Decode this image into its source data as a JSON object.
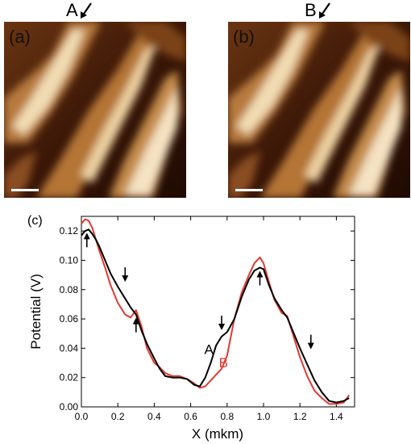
{
  "figure": {
    "panel_a": {
      "label": "(a)",
      "marker": "A"
    },
    "panel_b": {
      "label": "(b)",
      "marker": "B"
    },
    "panel_c": {
      "label": "(c)"
    }
  },
  "icons": {
    "marker_arrow": "down-left-arrow-icon",
    "profile_arrow": "vertical-arrow-icon"
  },
  "colors": {
    "series_a": "#000000",
    "series_b": "#e03a2f"
  },
  "chart_data": {
    "type": "line",
    "xlabel": "X (mkm)",
    "ylabel": "Potential (V)",
    "xlim": [
      0.0,
      1.5
    ],
    "ylim": [
      0.0,
      0.13
    ],
    "xticks": [
      "0.0",
      "0.2",
      "0.4",
      "0.6",
      "0.8",
      "1.0",
      "1.2",
      "1.4"
    ],
    "yticks": [
      "0.00",
      "0.02",
      "0.04",
      "0.06",
      "0.08",
      "0.10",
      "0.12"
    ],
    "series": [
      {
        "name": "A",
        "color": "#000000",
        "x": [
          0.0,
          0.02,
          0.04,
          0.06,
          0.08,
          0.1,
          0.13,
          0.16,
          0.2,
          0.24,
          0.27,
          0.3,
          0.33,
          0.36,
          0.4,
          0.43,
          0.46,
          0.5,
          0.54,
          0.58,
          0.62,
          0.65,
          0.68,
          0.71,
          0.74,
          0.77,
          0.8,
          0.84,
          0.88,
          0.92,
          0.95,
          0.98,
          1.0,
          1.03,
          1.06,
          1.1,
          1.13,
          1.16,
          1.2,
          1.24,
          1.28,
          1.32,
          1.36,
          1.4,
          1.44,
          1.47
        ],
        "y": [
          0.117,
          0.12,
          0.121,
          0.118,
          0.114,
          0.109,
          0.1,
          0.091,
          0.082,
          0.074,
          0.068,
          0.063,
          0.052,
          0.043,
          0.033,
          0.026,
          0.021,
          0.02,
          0.02,
          0.019,
          0.015,
          0.014,
          0.02,
          0.03,
          0.042,
          0.048,
          0.051,
          0.06,
          0.075,
          0.087,
          0.093,
          0.095,
          0.094,
          0.083,
          0.074,
          0.066,
          0.061,
          0.052,
          0.04,
          0.029,
          0.018,
          0.01,
          0.004,
          0.003,
          0.004,
          0.006
        ]
      },
      {
        "name": "B",
        "color": "#e03a2f",
        "x": [
          0.0,
          0.02,
          0.04,
          0.06,
          0.08,
          0.1,
          0.13,
          0.16,
          0.2,
          0.24,
          0.27,
          0.3,
          0.33,
          0.36,
          0.4,
          0.43,
          0.46,
          0.5,
          0.54,
          0.58,
          0.62,
          0.65,
          0.68,
          0.71,
          0.74,
          0.77,
          0.8,
          0.84,
          0.88,
          0.92,
          0.95,
          0.98,
          1.0,
          1.03,
          1.06,
          1.1,
          1.13,
          1.16,
          1.2,
          1.24,
          1.28,
          1.32,
          1.36,
          1.4,
          1.44,
          1.47
        ],
        "y": [
          0.125,
          0.128,
          0.127,
          0.122,
          0.114,
          0.106,
          0.095,
          0.083,
          0.071,
          0.063,
          0.061,
          0.066,
          0.055,
          0.04,
          0.03,
          0.027,
          0.023,
          0.021,
          0.021,
          0.019,
          0.016,
          0.013,
          0.014,
          0.018,
          0.022,
          0.026,
          0.035,
          0.06,
          0.078,
          0.09,
          0.098,
          0.102,
          0.098,
          0.085,
          0.073,
          0.064,
          0.062,
          0.05,
          0.034,
          0.021,
          0.011,
          0.006,
          0.002,
          0.002,
          0.003,
          0.008
        ]
      }
    ],
    "arrows": [
      {
        "x": 0.03,
        "y": 0.121,
        "dir": "up"
      },
      {
        "x": 0.24,
        "y": 0.082,
        "dir": "down"
      },
      {
        "x": 0.3,
        "y": 0.063,
        "dir": "up"
      },
      {
        "x": 0.77,
        "y": 0.049,
        "dir": "down"
      },
      {
        "x": 0.98,
        "y": 0.095,
        "dir": "up"
      },
      {
        "x": 1.26,
        "y": 0.036,
        "dir": "down"
      }
    ],
    "annotations": [
      {
        "text": "A",
        "x": 0.7,
        "y": 0.036,
        "color": "#000000"
      },
      {
        "text": "B",
        "x": 0.78,
        "y": 0.027,
        "color": "#e03a2f"
      }
    ]
  }
}
